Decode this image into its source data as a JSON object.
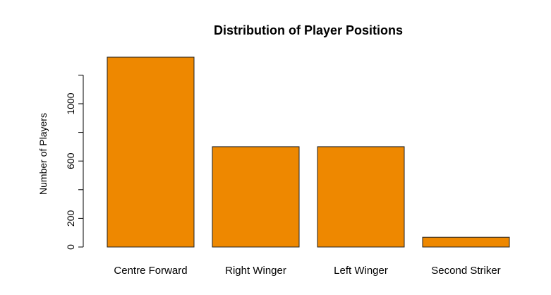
{
  "chart_data": {
    "type": "bar",
    "title": "Distribution of Player Positions",
    "xlabel": "",
    "ylabel": "Number of Players",
    "categories": [
      "Centre Forward",
      "Right Winger",
      "Left Winger",
      "Second Striker"
    ],
    "values": [
      1325,
      700,
      700,
      68
    ],
    "ylim": [
      0,
      1325
    ],
    "y_ticks": [
      0,
      200,
      400,
      600,
      800,
      1000,
      1200
    ],
    "y_tick_labels": [
      "0",
      "200",
      "",
      "600",
      "",
      "1000",
      ""
    ],
    "bar_color": "#EE8800",
    "grid": false
  }
}
